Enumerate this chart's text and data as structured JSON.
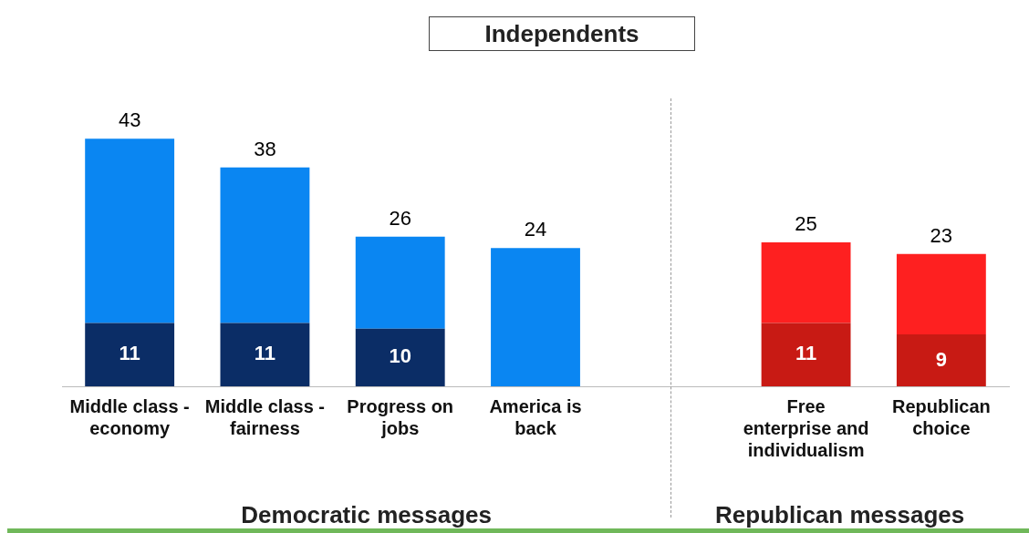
{
  "chart_data": {
    "type": "bar",
    "title": "Independents",
    "stacked": true,
    "categories": [
      "Middle class - economy",
      "Middle class - fairness",
      "Progress on jobs",
      "America is back",
      null,
      "Free enterprise and individualism",
      "Republican choice"
    ],
    "series": [
      {
        "colors": [
          "#0b2d66",
          "#0b2d66",
          "#0b2d66",
          null,
          null,
          "#c81a14",
          "#c81a14"
        ],
        "values": [
          11,
          11,
          10,
          null,
          null,
          11,
          9
        ],
        "value_labels": [
          "11",
          "11",
          "10",
          null,
          null,
          "11",
          "9"
        ]
      },
      {
        "colors": [
          "#0a86f2",
          "#0a86f2",
          "#0a86f2",
          "#0a86f2",
          null,
          "#fe2020",
          "#fe2020"
        ],
        "values": [
          32,
          27,
          16,
          24,
          null,
          14,
          14
        ]
      }
    ],
    "totals": [
      "43",
      "38",
      "26",
      "24",
      null,
      "25",
      "23"
    ],
    "annotations": [
      "Democratic messages",
      "Republican messages"
    ],
    "tick_labels": "x",
    "legend": false
  }
}
